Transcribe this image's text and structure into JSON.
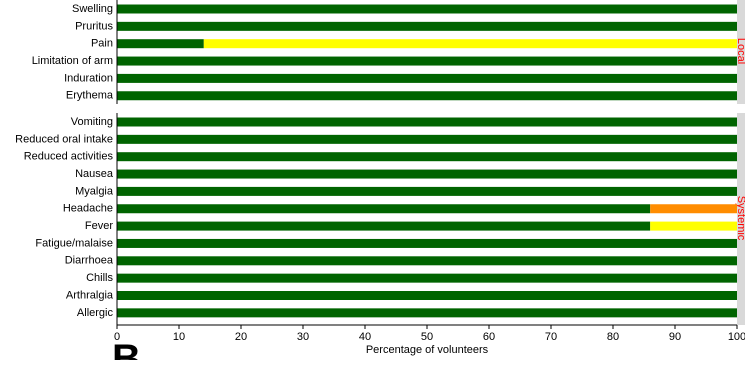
{
  "chart_data": {
    "type": "bar",
    "orientation": "horizontal",
    "stacked": true,
    "xlabel": "Percentage of volunteers",
    "xlim": [
      0,
      100
    ],
    "xticks": [
      0,
      10,
      20,
      30,
      40,
      50,
      60,
      70,
      80,
      90,
      100
    ],
    "grid": false,
    "legend": "none",
    "figure_letter": "B",
    "panels": [
      {
        "label": "Local",
        "categories": [
          "Swelling",
          "Pruritus",
          "Pain",
          "Limitation of arm",
          "Induration",
          "Erythema"
        ],
        "series": [
          {
            "color": "#006400",
            "values": [
              100,
              100,
              14,
              100,
              100,
              100
            ]
          },
          {
            "color": "#ffff00",
            "values": [
              0,
              0,
              86,
              0,
              0,
              0
            ]
          },
          {
            "color": "#ff8c00",
            "values": [
              0,
              0,
              0,
              0,
              0,
              0
            ]
          }
        ]
      },
      {
        "label": "Systemic",
        "categories": [
          "Vomiting",
          "Reduced oral intake",
          "Reduced activities",
          "Nausea",
          "Myalgia",
          "Headache",
          "Fever",
          "Fatigue/malaise",
          "Diarrhoea",
          "Chills",
          "Arthralgia",
          "Allergic"
        ],
        "series": [
          {
            "color": "#006400",
            "values": [
              100,
              100,
              100,
              100,
              100,
              86,
              86,
              100,
              100,
              100,
              100,
              100
            ]
          },
          {
            "color": "#ffff00",
            "values": [
              0,
              0,
              0,
              0,
              0,
              0,
              14,
              0,
              0,
              0,
              0,
              0
            ]
          },
          {
            "color": "#ff8c00",
            "values": [
              0,
              0,
              0,
              0,
              0,
              14,
              0,
              0,
              0,
              0,
              0,
              0
            ]
          }
        ]
      }
    ],
    "panel_label_color": "#ff0000",
    "panel_strip_color": "#d9d9d9"
  }
}
